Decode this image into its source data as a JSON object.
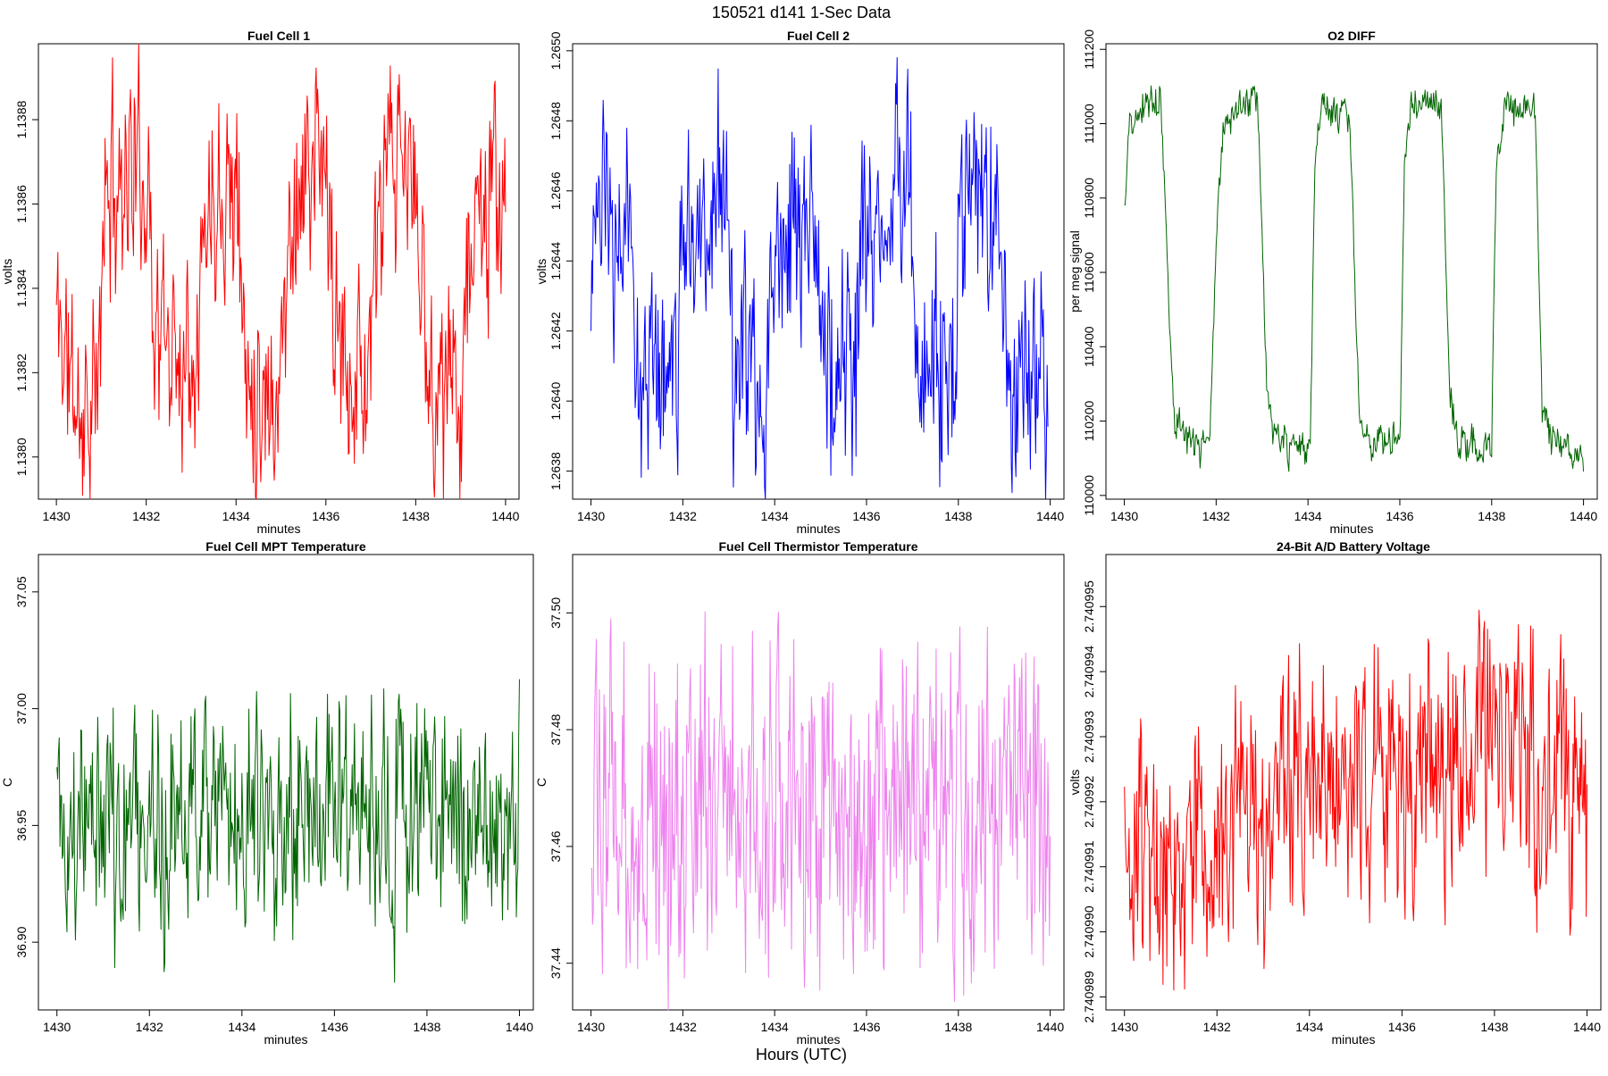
{
  "header": {
    "title": "150521   d141   1-Sec Data"
  },
  "footer": {
    "xlabel": "Hours (UTC)"
  },
  "chart_data": [
    {
      "id": "fc1",
      "type": "line",
      "title": "Fuel Cell 1",
      "xlabel": "minutes",
      "ylabel": "volts",
      "color": "#ff0000",
      "xlim": [
        1429.6,
        1440.3
      ],
      "ylim": [
        1.1379,
        1.13898
      ],
      "xticks": [
        "1430",
        "1432",
        "1434",
        "1436",
        "1438",
        "1440"
      ],
      "yticks": [
        "1.1380",
        "1.1382",
        "1.1384",
        "1.1386",
        "1.1388"
      ],
      "noise": 0.00035,
      "seed": 11,
      "start": 1430.0,
      "end": 1440.0,
      "knots": [
        [
          1430.0,
          1.13835
        ],
        [
          1430.5,
          1.1381
        ],
        [
          1430.95,
          1.13815
        ],
        [
          1431.05,
          1.1386
        ],
        [
          1431.6,
          1.1387
        ],
        [
          1432.05,
          1.13865
        ],
        [
          1432.2,
          1.1383
        ],
        [
          1432.8,
          1.13825
        ],
        [
          1433.15,
          1.13835
        ],
        [
          1433.35,
          1.1386
        ],
        [
          1433.8,
          1.1387
        ],
        [
          1434.05,
          1.1386
        ],
        [
          1434.2,
          1.1382
        ],
        [
          1434.9,
          1.13815
        ],
        [
          1435.05,
          1.1383
        ],
        [
          1435.25,
          1.1386
        ],
        [
          1435.8,
          1.1387
        ],
        [
          1436.05,
          1.13865
        ],
        [
          1436.2,
          1.13825
        ],
        [
          1436.9,
          1.1382
        ],
        [
          1437.1,
          1.1384
        ],
        [
          1437.3,
          1.13865
        ],
        [
          1437.9,
          1.13868
        ],
        [
          1438.05,
          1.13855
        ],
        [
          1438.25,
          1.1382
        ],
        [
          1438.9,
          1.13815
        ],
        [
          1439.1,
          1.1383
        ],
        [
          1439.25,
          1.13855
        ],
        [
          1439.95,
          1.1386
        ]
      ]
    },
    {
      "id": "fc2",
      "type": "line",
      "title": "Fuel Cell 2",
      "xlabel": "minutes",
      "ylabel": "volts",
      "color": "#0000ff",
      "xlim": [
        1429.6,
        1440.3
      ],
      "ylim": [
        1.26372,
        1.26502
      ],
      "xticks": [
        "1430",
        "1432",
        "1434",
        "1436",
        "1438",
        "1440"
      ],
      "yticks": [
        "1.2638",
        "1.2640",
        "1.2642",
        "1.2644",
        "1.2646",
        "1.2648",
        "1.2650"
      ],
      "noise": 0.00045,
      "seed": 23,
      "start": 1430.0,
      "end": 1439.95,
      "knots": [
        [
          1430.0,
          1.2645
        ],
        [
          1430.9,
          1.26445
        ],
        [
          1431.05,
          1.2641
        ],
        [
          1431.85,
          1.2641
        ],
        [
          1432.05,
          1.2645
        ],
        [
          1432.95,
          1.2646
        ],
        [
          1433.1,
          1.2641
        ],
        [
          1433.85,
          1.264
        ],
        [
          1434.05,
          1.2645
        ],
        [
          1434.9,
          1.26455
        ],
        [
          1435.05,
          1.2641
        ],
        [
          1435.8,
          1.2641
        ],
        [
          1436.0,
          1.2645
        ],
        [
          1436.95,
          1.26455
        ],
        [
          1437.1,
          1.26415
        ],
        [
          1437.9,
          1.2641
        ],
        [
          1438.05,
          1.2645
        ],
        [
          1438.95,
          1.26455
        ],
        [
          1439.05,
          1.26405
        ],
        [
          1439.95,
          1.264
        ]
      ]
    },
    {
      "id": "o2",
      "type": "line",
      "title": "O2 DIFF",
      "xlabel": "minutes",
      "ylabel": "per meg signal",
      "color": "#006400",
      "xlim": [
        1429.6,
        1440.3
      ],
      "ylim": [
        109990,
        111215
      ],
      "xticks": [
        "1430",
        "1432",
        "1434",
        "1436",
        "1438",
        "1440"
      ],
      "yticks": [
        "110000",
        "110200",
        "110400",
        "110600",
        "110800",
        "111000",
        "111200"
      ],
      "noise": 70,
      "seed": 37,
      "start": 1430.0,
      "end": 1440.0,
      "knots": [
        [
          1430.0,
          110760
        ],
        [
          1430.1,
          110980
        ],
        [
          1430.5,
          111060
        ],
        [
          1430.8,
          111070
        ],
        [
          1430.95,
          110600
        ],
        [
          1431.1,
          110200
        ],
        [
          1431.5,
          110130
        ],
        [
          1431.85,
          110130
        ],
        [
          1432.0,
          110700
        ],
        [
          1432.15,
          111000
        ],
        [
          1432.5,
          111050
        ],
        [
          1432.9,
          111050
        ],
        [
          1433.1,
          110300
        ],
        [
          1433.25,
          110160
        ],
        [
          1433.8,
          110120
        ],
        [
          1434.05,
          110120
        ],
        [
          1434.15,
          110900
        ],
        [
          1434.3,
          111040
        ],
        [
          1434.9,
          111030
        ],
        [
          1435.1,
          110250
        ],
        [
          1435.3,
          110150
        ],
        [
          1436.0,
          110140
        ],
        [
          1436.1,
          110900
        ],
        [
          1436.25,
          111060
        ],
        [
          1436.9,
          111050
        ],
        [
          1437.1,
          110250
        ],
        [
          1437.3,
          110140
        ],
        [
          1438.0,
          110130
        ],
        [
          1438.1,
          110900
        ],
        [
          1438.3,
          111040
        ],
        [
          1438.95,
          111030
        ],
        [
          1439.1,
          110250
        ],
        [
          1439.3,
          110140
        ],
        [
          1440.0,
          110110
        ]
      ]
    },
    {
      "id": "mpt",
      "type": "line",
      "title": "Fuel Cell MPT Temperature",
      "xlabel": "minutes",
      "ylabel": "C",
      "color": "#006400",
      "xlim": [
        1429.6,
        1440.3
      ],
      "ylim": [
        36.871,
        37.066
      ],
      "xticks": [
        "1430",
        "1432",
        "1434",
        "1436",
        "1438",
        "1440"
      ],
      "yticks": [
        "36.90",
        "36.95",
        "37.00",
        "37.05"
      ],
      "noise": 0.07,
      "seed": 41,
      "start": 1430.0,
      "end": 1440.0,
      "knots": [
        [
          1430.0,
          36.95
        ],
        [
          1433.0,
          36.95
        ],
        [
          1437.0,
          36.955
        ],
        [
          1440.0,
          36.95
        ]
      ]
    },
    {
      "id": "thermistor",
      "type": "line",
      "title": "Fuel Cell Thermistor Temperature",
      "xlabel": "minutes",
      "ylabel": "C",
      "color": "#ee82ee",
      "xlim": [
        1429.6,
        1440.3
      ],
      "ylim": [
        37.432,
        37.51
      ],
      "xticks": [
        "1430",
        "1432",
        "1434",
        "1436",
        "1438",
        "1440"
      ],
      "yticks": [
        "37.44",
        "37.46",
        "37.48",
        "37.50"
      ],
      "noise": 0.04,
      "seed": 53,
      "start": 1430.0,
      "end": 1440.0,
      "knots": [
        [
          1430.0,
          37.466
        ],
        [
          1435.0,
          37.466
        ],
        [
          1440.0,
          37.466
        ]
      ]
    },
    {
      "id": "battery",
      "type": "line",
      "title": "24-Bit A/D Battery Voltage",
      "xlabel": "minutes",
      "ylabel": "volts",
      "color": "#ff0000",
      "xlim": [
        1429.6,
        1440.3
      ],
      "ylim": [
        2.7409888,
        2.7409958
      ],
      "xticks": [
        "1430",
        "1432",
        "1434",
        "1436",
        "1438",
        "1440"
      ],
      "yticks": [
        "2.740989",
        "2.740990",
        "2.740991",
        "2.740992",
        "2.740993",
        "2.740994",
        "2.740995"
      ],
      "noise": 2.8e-06,
      "seed": 67,
      "start": 1430.0,
      "end": 1440.0,
      "knots": [
        [
          1430.0,
          2.740991
        ],
        [
          1433.0,
          2.7409914
        ],
        [
          1433.3,
          2.7409922
        ],
        [
          1436.0,
          2.7409925
        ],
        [
          1438.5,
          2.7409928
        ],
        [
          1440.0,
          2.740992
        ]
      ]
    }
  ]
}
